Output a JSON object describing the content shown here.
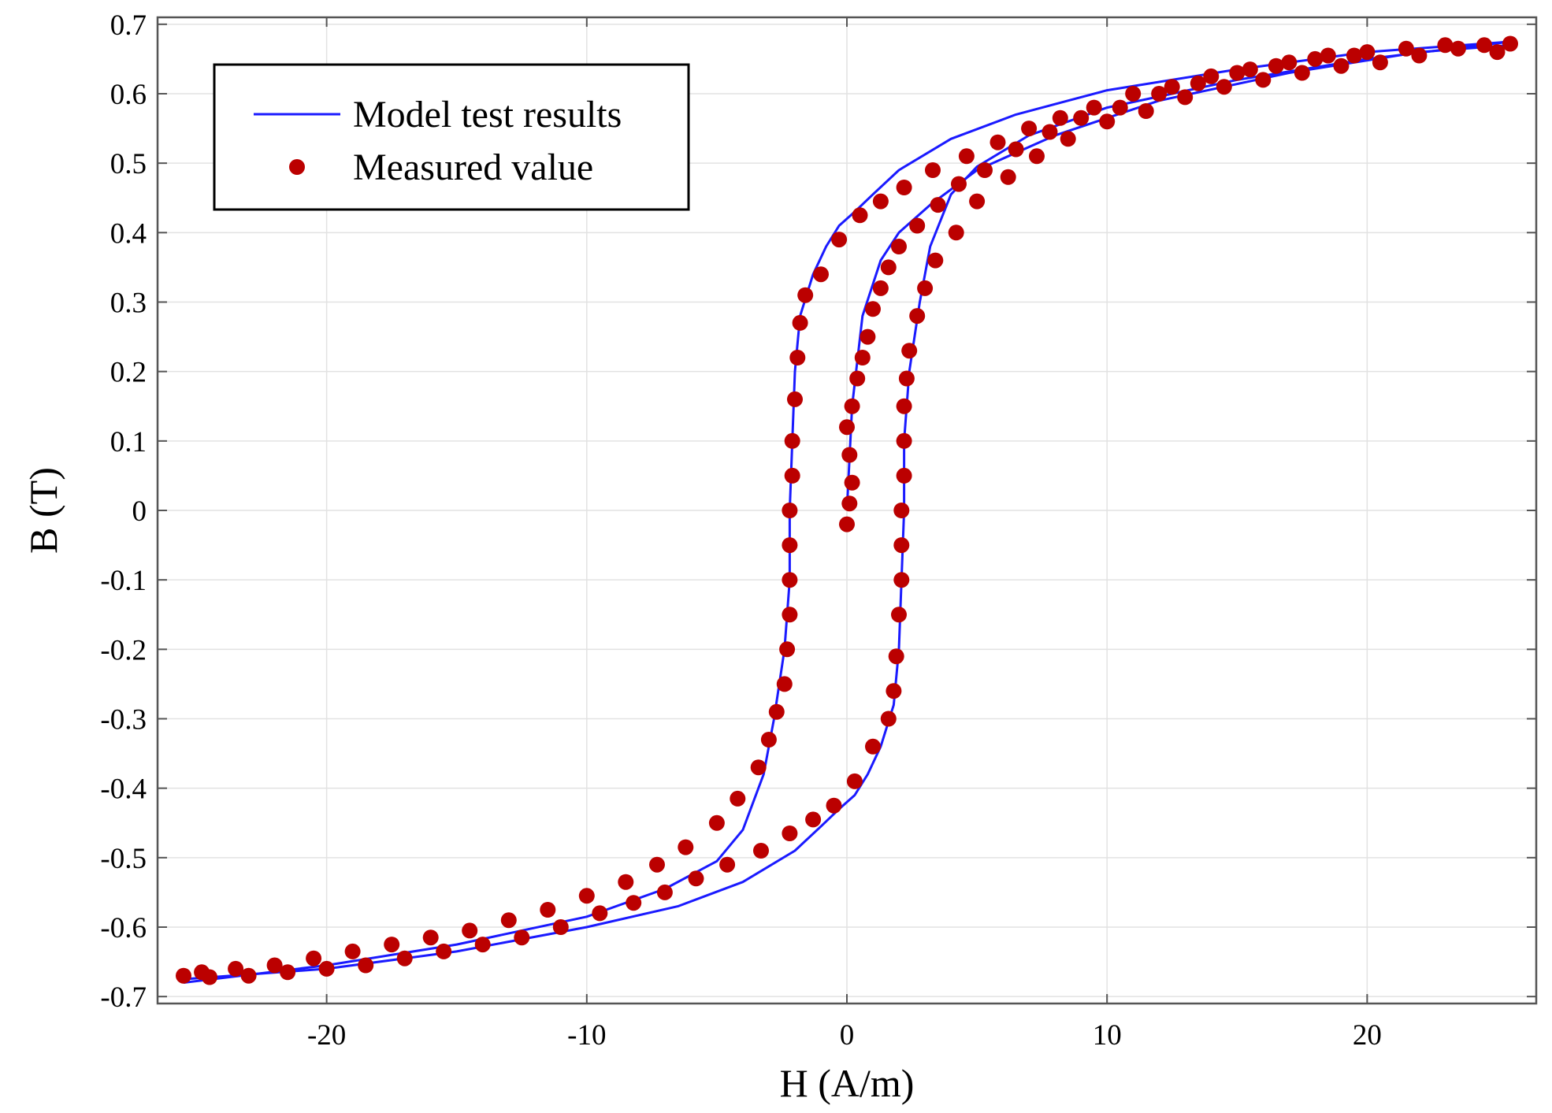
{
  "chart_data": {
    "type": "scatter",
    "title": "",
    "xlabel": "H (A/m)",
    "ylabel": "B (T)",
    "xlim": [
      -26.5,
      26.5
    ],
    "ylim": [
      -0.71,
      0.71
    ],
    "grid": true,
    "legend_position": "top-left",
    "x_ticks": [
      -20,
      -10,
      0,
      10,
      20
    ],
    "x_tick_labels": [
      "-20",
      "-10",
      "0",
      "10",
      "20"
    ],
    "y_ticks": [
      0.7,
      0.6,
      0.5,
      0.4,
      0.3,
      0.2,
      0.1,
      0,
      -0.1,
      -0.2,
      -0.3,
      -0.4,
      -0.5,
      -0.6,
      -0.7
    ],
    "y_tick_labels": [
      "0.7",
      "0.6",
      "0.5",
      "0.4",
      "0.3",
      "0.2",
      "0.1",
      "0",
      "-0.1",
      "-0.2",
      "-0.3",
      "-0.4",
      "-0.5",
      "-0.6",
      "-0.7"
    ],
    "colors": {
      "model": "#1a1aff",
      "measured": "#bb0000",
      "grid": "#e2e2e2",
      "axis": "#555555"
    },
    "series": [
      {
        "name": "Model test results",
        "kind": "line",
        "segments": [
          [
            [
              -25.5,
              -0.68
            ],
            [
              -20,
              -0.655
            ],
            [
              -15,
              -0.625
            ],
            [
              -10,
              -0.585
            ],
            [
              -7,
              -0.545
            ],
            [
              -5,
              -0.505
            ],
            [
              -4,
              -0.46
            ],
            [
              -3.2,
              -0.38
            ],
            [
              -2.8,
              -0.3
            ],
            [
              -2.4,
              -0.2
            ],
            [
              -2.2,
              -0.1
            ],
            [
              -2.2,
              0
            ],
            [
              -2.1,
              0.1
            ],
            [
              -2.0,
              0.2
            ],
            [
              -1.8,
              0.28
            ],
            [
              -1.3,
              0.34
            ],
            [
              -0.8,
              0.38
            ],
            [
              -0.3,
              0.41
            ],
            [
              0.3,
              0.43
            ],
            [
              1,
              0.455
            ],
            [
              2,
              0.49
            ],
            [
              4,
              0.535
            ],
            [
              6.5,
              0.57
            ],
            [
              10,
              0.605
            ],
            [
              15,
              0.635
            ],
            [
              20,
              0.66
            ],
            [
              25.5,
              0.675
            ]
          ],
          [
            [
              25.5,
              0.675
            ],
            [
              20,
              0.65
            ],
            [
              15,
              0.62
            ],
            [
              10,
              0.58
            ],
            [
              7,
              0.54
            ],
            [
              5,
              0.495
            ],
            [
              4,
              0.455
            ],
            [
              3.2,
              0.38
            ],
            [
              2.8,
              0.3
            ],
            [
              2.4,
              0.2
            ],
            [
              2.2,
              0.1
            ],
            [
              2.2,
              0
            ],
            [
              2.1,
              -0.1
            ],
            [
              2.0,
              -0.2
            ],
            [
              1.8,
              -0.28
            ],
            [
              1.3,
              -0.34
            ],
            [
              0.8,
              -0.38
            ],
            [
              0.3,
              -0.41
            ],
            [
              -0.3,
              -0.43
            ],
            [
              -1,
              -0.455
            ],
            [
              -2,
              -0.49
            ],
            [
              -4,
              -0.535
            ],
            [
              -6.5,
              -0.57
            ],
            [
              -10,
              -0.6
            ],
            [
              -15,
              -0.635
            ],
            [
              -20,
              -0.66
            ],
            [
              -25.5,
              -0.675
            ]
          ],
          [
            [
              0,
              0
            ],
            [
              0.2,
              0.15
            ],
            [
              0.6,
              0.28
            ],
            [
              1.3,
              0.36
            ],
            [
              2,
              0.4
            ],
            [
              3.2,
              0.44
            ],
            [
              5,
              0.49
            ],
            [
              8,
              0.54
            ],
            [
              12,
              0.59
            ],
            [
              17,
              0.63
            ],
            [
              22,
              0.66
            ],
            [
              25.5,
              0.67
            ]
          ]
        ]
      },
      {
        "name": "Measured value",
        "kind": "scatter",
        "points": [
          [
            -25.5,
            -0.67
          ],
          [
            -24.8,
            -0.665
          ],
          [
            -23.5,
            -0.66
          ],
          [
            -22.0,
            -0.655
          ],
          [
            -20.5,
            -0.645
          ],
          [
            -19.0,
            -0.635
          ],
          [
            -17.5,
            -0.625
          ],
          [
            -16.0,
            -0.615
          ],
          [
            -14.5,
            -0.605
          ],
          [
            -13.0,
            -0.59
          ],
          [
            -11.5,
            -0.575
          ],
          [
            -10.0,
            -0.555
          ],
          [
            -8.5,
            -0.535
          ],
          [
            -7.3,
            -0.51
          ],
          [
            -6.2,
            -0.485
          ],
          [
            -5.0,
            -0.45
          ],
          [
            -4.2,
            -0.415
          ],
          [
            -3.4,
            -0.37
          ],
          [
            -3.0,
            -0.33
          ],
          [
            -2.7,
            -0.29
          ],
          [
            -2.4,
            -0.25
          ],
          [
            -2.3,
            -0.2
          ],
          [
            -2.2,
            -0.15
          ],
          [
            -2.2,
            -0.1
          ],
          [
            -2.2,
            -0.05
          ],
          [
            -2.2,
            0.0
          ],
          [
            -2.1,
            0.05
          ],
          [
            -2.1,
            0.1
          ],
          [
            -2.0,
            0.16
          ],
          [
            -1.9,
            0.22
          ],
          [
            -1.8,
            0.27
          ],
          [
            -1.6,
            0.31
          ],
          [
            -1.0,
            0.34
          ],
          [
            -0.3,
            0.39
          ],
          [
            0.5,
            0.425
          ],
          [
            1.3,
            0.445
          ],
          [
            2.2,
            0.465
          ],
          [
            3.3,
            0.49
          ],
          [
            4.6,
            0.51
          ],
          [
            5.8,
            0.53
          ],
          [
            7.0,
            0.55
          ],
          [
            8.2,
            0.565
          ],
          [
            9.5,
            0.58
          ],
          [
            11.0,
            0.6
          ],
          [
            12.5,
            0.61
          ],
          [
            14.0,
            0.625
          ],
          [
            15.5,
            0.635
          ],
          [
            17.0,
            0.645
          ],
          [
            18.5,
            0.655
          ],
          [
            20.0,
            0.66
          ],
          [
            21.5,
            0.665
          ],
          [
            23.0,
            0.67
          ],
          [
            24.5,
            0.67
          ],
          [
            25.5,
            0.672
          ],
          [
            25.0,
            0.66
          ],
          [
            23.5,
            0.665
          ],
          [
            22.0,
            0.655
          ],
          [
            20.5,
            0.645
          ],
          [
            19.0,
            0.64
          ],
          [
            17.5,
            0.63
          ],
          [
            16.0,
            0.62
          ],
          [
            14.5,
            0.61
          ],
          [
            13.0,
            0.595
          ],
          [
            11.5,
            0.575
          ],
          [
            10.0,
            0.56
          ],
          [
            8.5,
            0.535
          ],
          [
            7.3,
            0.51
          ],
          [
            6.2,
            0.48
          ],
          [
            5.0,
            0.445
          ],
          [
            4.2,
            0.4
          ],
          [
            3.4,
            0.36
          ],
          [
            3.0,
            0.32
          ],
          [
            2.7,
            0.28
          ],
          [
            2.4,
            0.23
          ],
          [
            2.3,
            0.19
          ],
          [
            2.2,
            0.15
          ],
          [
            2.2,
            0.1
          ],
          [
            2.2,
            0.05
          ],
          [
            2.1,
            0.0
          ],
          [
            2.1,
            -0.05
          ],
          [
            2.1,
            -0.1
          ],
          [
            2.0,
            -0.15
          ],
          [
            1.9,
            -0.21
          ],
          [
            1.8,
            -0.26
          ],
          [
            1.6,
            -0.3
          ],
          [
            1.0,
            -0.34
          ],
          [
            0.3,
            -0.39
          ],
          [
            -0.5,
            -0.425
          ],
          [
            -1.3,
            -0.445
          ],
          [
            -2.2,
            -0.465
          ],
          [
            -3.3,
            -0.49
          ],
          [
            -4.6,
            -0.51
          ],
          [
            -5.8,
            -0.53
          ],
          [
            -7.0,
            -0.55
          ],
          [
            -8.2,
            -0.565
          ],
          [
            -9.5,
            -0.58
          ],
          [
            -11.0,
            -0.6
          ],
          [
            -12.5,
            -0.615
          ],
          [
            -14.0,
            -0.625
          ],
          [
            -15.5,
            -0.635
          ],
          [
            -17.0,
            -0.645
          ],
          [
            -18.5,
            -0.655
          ],
          [
            -20.0,
            -0.66
          ],
          [
            -21.5,
            -0.665
          ],
          [
            -23.0,
            -0.67
          ],
          [
            -24.5,
            -0.672
          ],
          [
            0.0,
            -0.02
          ],
          [
            0.1,
            0.01
          ],
          [
            0.2,
            0.04
          ],
          [
            0.1,
            0.08
          ],
          [
            0.0,
            0.12
          ],
          [
            0.2,
            0.15
          ],
          [
            0.4,
            0.19
          ],
          [
            0.6,
            0.22
          ],
          [
            0.8,
            0.25
          ],
          [
            1.0,
            0.29
          ],
          [
            1.3,
            0.32
          ],
          [
            1.6,
            0.35
          ],
          [
            2.0,
            0.38
          ],
          [
            2.7,
            0.41
          ],
          [
            3.5,
            0.44
          ],
          [
            4.3,
            0.47
          ],
          [
            5.3,
            0.49
          ],
          [
            6.5,
            0.52
          ],
          [
            7.8,
            0.545
          ],
          [
            9.0,
            0.565
          ],
          [
            10.5,
            0.58
          ],
          [
            12.0,
            0.6
          ],
          [
            13.5,
            0.615
          ],
          [
            15.0,
            0.63
          ],
          [
            16.5,
            0.64
          ],
          [
            18.0,
            0.65
          ],
          [
            19.5,
            0.655
          ]
        ]
      }
    ]
  }
}
